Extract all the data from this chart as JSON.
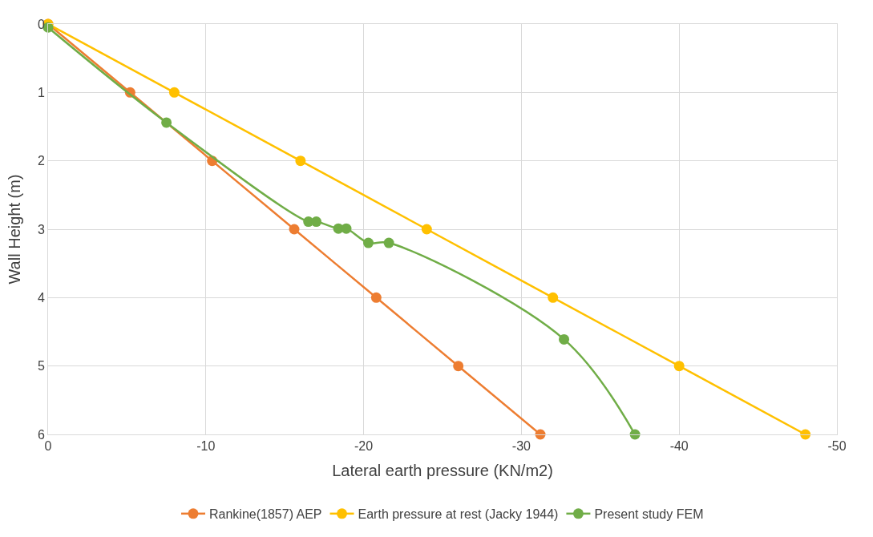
{
  "chart_data": {
    "type": "line",
    "xlabel": "Lateral earth pressure (KN/m2)",
    "ylabel": "Wall Height (m)",
    "xlim": [
      0,
      -50
    ],
    "xticks": [
      0,
      -10,
      -20,
      -30,
      -40,
      -50
    ],
    "ylim": [
      6,
      0
    ],
    "yticks": [
      0,
      1,
      2,
      3,
      4,
      5,
      6
    ],
    "grid": true,
    "legend": "bottom",
    "marker": "circle",
    "series": [
      {
        "name": "Rankine(1857) AEP",
        "color": "#ed7d31",
        "x": [
          0,
          -5.2,
          -10.4,
          -15.6,
          -20.8,
          -26,
          -31.2
        ],
        "values": [
          0,
          1,
          2,
          3,
          4,
          5,
          6
        ]
      },
      {
        "name": "Earth pressure at rest (Jacky 1944)",
        "color": "#ffc000",
        "x": [
          0,
          -8,
          -16,
          -24,
          -32,
          -40,
          -48
        ],
        "values": [
          0,
          1,
          2,
          3,
          4,
          5,
          6
        ]
      },
      {
        "name": "Present study FEM",
        "color": "#70ad47",
        "x": [
          0,
          -7.5,
          -16.5,
          -17.0,
          -18.4,
          -18.9,
          -20.3,
          -21.6,
          -32.7,
          -37.2
        ],
        "values": [
          0.05,
          1.44,
          2.89,
          2.89,
          2.99,
          2.99,
          3.2,
          3.2,
          4.61,
          6
        ]
      }
    ]
  }
}
